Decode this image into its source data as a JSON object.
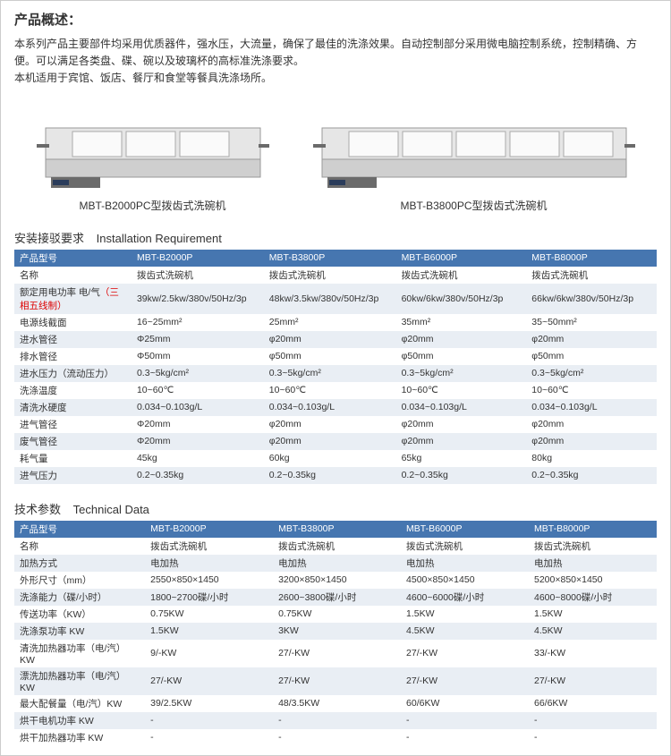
{
  "header": {
    "title": "产品概述：",
    "desc_line1": "本系列产品主要部件均采用优质器件，强水压，大流量，确保了最佳的洗涤效果。自动控制部分采用微电脑控制系统，控制精确、方便。可以满足各类盘、碟、碗以及玻璃杯的高标准洗涤要求。",
    "desc_line2": "本机适用于宾馆、饭店、餐厅和食堂等餐具洗涤场所。"
  },
  "machines": {
    "left_caption": "MBT-B2000PC型拨齿式洗碗机",
    "right_caption": "MBT-B3800PC型拨齿式洗碗机"
  },
  "install_section_title_cn": "安装接驳要求",
  "install_section_title_en": "Installation Requirement",
  "tech_section_title_cn": "技术参数",
  "tech_section_title_en": "Technical Data",
  "install": {
    "header_label": "产品型号",
    "cols": [
      "MBT-B2000P",
      "MBT-B3800P",
      "MBT-B6000P",
      "MBT-B8000P"
    ],
    "rows": [
      {
        "label": "名称",
        "v": [
          "拨齿式洗碗机",
          "拨齿式洗碗机",
          "拨齿式洗碗机",
          "拨齿式洗碗机"
        ]
      },
      {
        "label": "额定用电功率 电/气",
        "label_note": "（三相五线制）",
        "v": [
          "39kw/2.5kw/380v/50Hz/3p",
          "48kw/3.5kw/380v/50Hz/3p",
          "60kw/6kw/380v/50Hz/3p",
          "66kw/6kw/380v/50Hz/3p"
        ]
      },
      {
        "label": "电源线截面",
        "v": [
          "16~25mm²",
          "25mm²",
          "35mm²",
          "35~50mm²"
        ]
      },
      {
        "label": "进水管径",
        "v": [
          "Φ25mm",
          "φ20mm",
          "φ20mm",
          "φ20mm"
        ]
      },
      {
        "label": "排水管径",
        "v": [
          "Φ50mm",
          "φ50mm",
          "φ50mm",
          "φ50mm"
        ]
      },
      {
        "label": "进水压力（流动压力）",
        "v": [
          "0.3~5kg/cm²",
          "0.3~5kg/cm²",
          "0.3~5kg/cm²",
          "0.3~5kg/cm²"
        ]
      },
      {
        "label": "洗涤温度",
        "v": [
          "10~60℃",
          "10~60℃",
          "10~60℃",
          "10~60℃"
        ]
      },
      {
        "label": "清洗水硬度",
        "v": [
          "0.034~0.103g/L",
          "0.034~0.103g/L",
          "0.034~0.103g/L",
          "0.034~0.103g/L"
        ]
      },
      {
        "label": "进气管径",
        "v": [
          "Φ20mm",
          "φ20mm",
          "φ20mm",
          "φ20mm"
        ]
      },
      {
        "label": "废气管径",
        "v": [
          "Φ20mm",
          "φ20mm",
          "φ20mm",
          "φ20mm"
        ]
      },
      {
        "label": "耗气量",
        "v": [
          "45kg",
          "60kg",
          "65kg",
          "80kg"
        ]
      },
      {
        "label": "进气压力",
        "v": [
          "0.2~0.35kg",
          "0.2~0.35kg",
          "0.2~0.35kg",
          "0.2~0.35kg"
        ]
      }
    ]
  },
  "tech": {
    "header_label": "产品型号",
    "cols": [
      "MBT-B2000P",
      "MBT-B3800P",
      "MBT-B6000P",
      "MBT-B8000P"
    ],
    "rows": [
      {
        "label": "名称",
        "v": [
          "拨齿式洗碗机",
          "拨齿式洗碗机",
          "拨齿式洗碗机",
          "拨齿式洗碗机"
        ]
      },
      {
        "label": "加热方式",
        "v": [
          "电加热",
          "电加热",
          "电加热",
          "电加热"
        ]
      },
      {
        "label": "外形尺寸（mm）",
        "v": [
          "2550×850×1450",
          "3200×850×1450",
          "4500×850×1450",
          "5200×850×1450"
        ]
      },
      {
        "label": "洗涤能力（碟/小时）",
        "v": [
          "1800~2700碟/小时",
          "2600~3800碟/小时",
          "4600~6000碟/小时",
          "4600~8000碟/小时"
        ]
      },
      {
        "label": "传送功率（KW）",
        "v": [
          "0.75KW",
          "0.75KW",
          "1.5KW",
          "1.5KW"
        ]
      },
      {
        "label": "洗涤泵功率 KW",
        "v": [
          "1.5KW",
          "3KW",
          "4.5KW",
          "4.5KW"
        ]
      },
      {
        "label": "清洗加热器功率（电/汽）KW",
        "v": [
          "9/-KW",
          "27/-KW",
          "27/-KW",
          "33/-KW"
        ]
      },
      {
        "label": "漂洗加热器功率（电/汽）KW",
        "v": [
          "27/-KW",
          "27/-KW",
          "27/-KW",
          "27/-KW"
        ]
      },
      {
        "label": "最大配餐量（电/汽）KW",
        "v": [
          "39/2.5KW",
          "48/3.5KW",
          "60/6KW",
          "66/6KW"
        ]
      },
      {
        "label": "烘干电机功率 KW",
        "v": [
          "-",
          "-",
          "-",
          "-"
        ]
      },
      {
        "label": "烘干加热器功率 KW",
        "v": [
          "-",
          "-",
          "-",
          "-"
        ]
      }
    ]
  },
  "colors": {
    "header_bg": "#4676b0",
    "header_fg": "#ffffff",
    "band_bg": "#e9eef4",
    "note_color": "#d00000",
    "machine_body": "#e6e6e6",
    "machine_panel": "#cfcfcf",
    "machine_dark": "#6b6b6b"
  }
}
